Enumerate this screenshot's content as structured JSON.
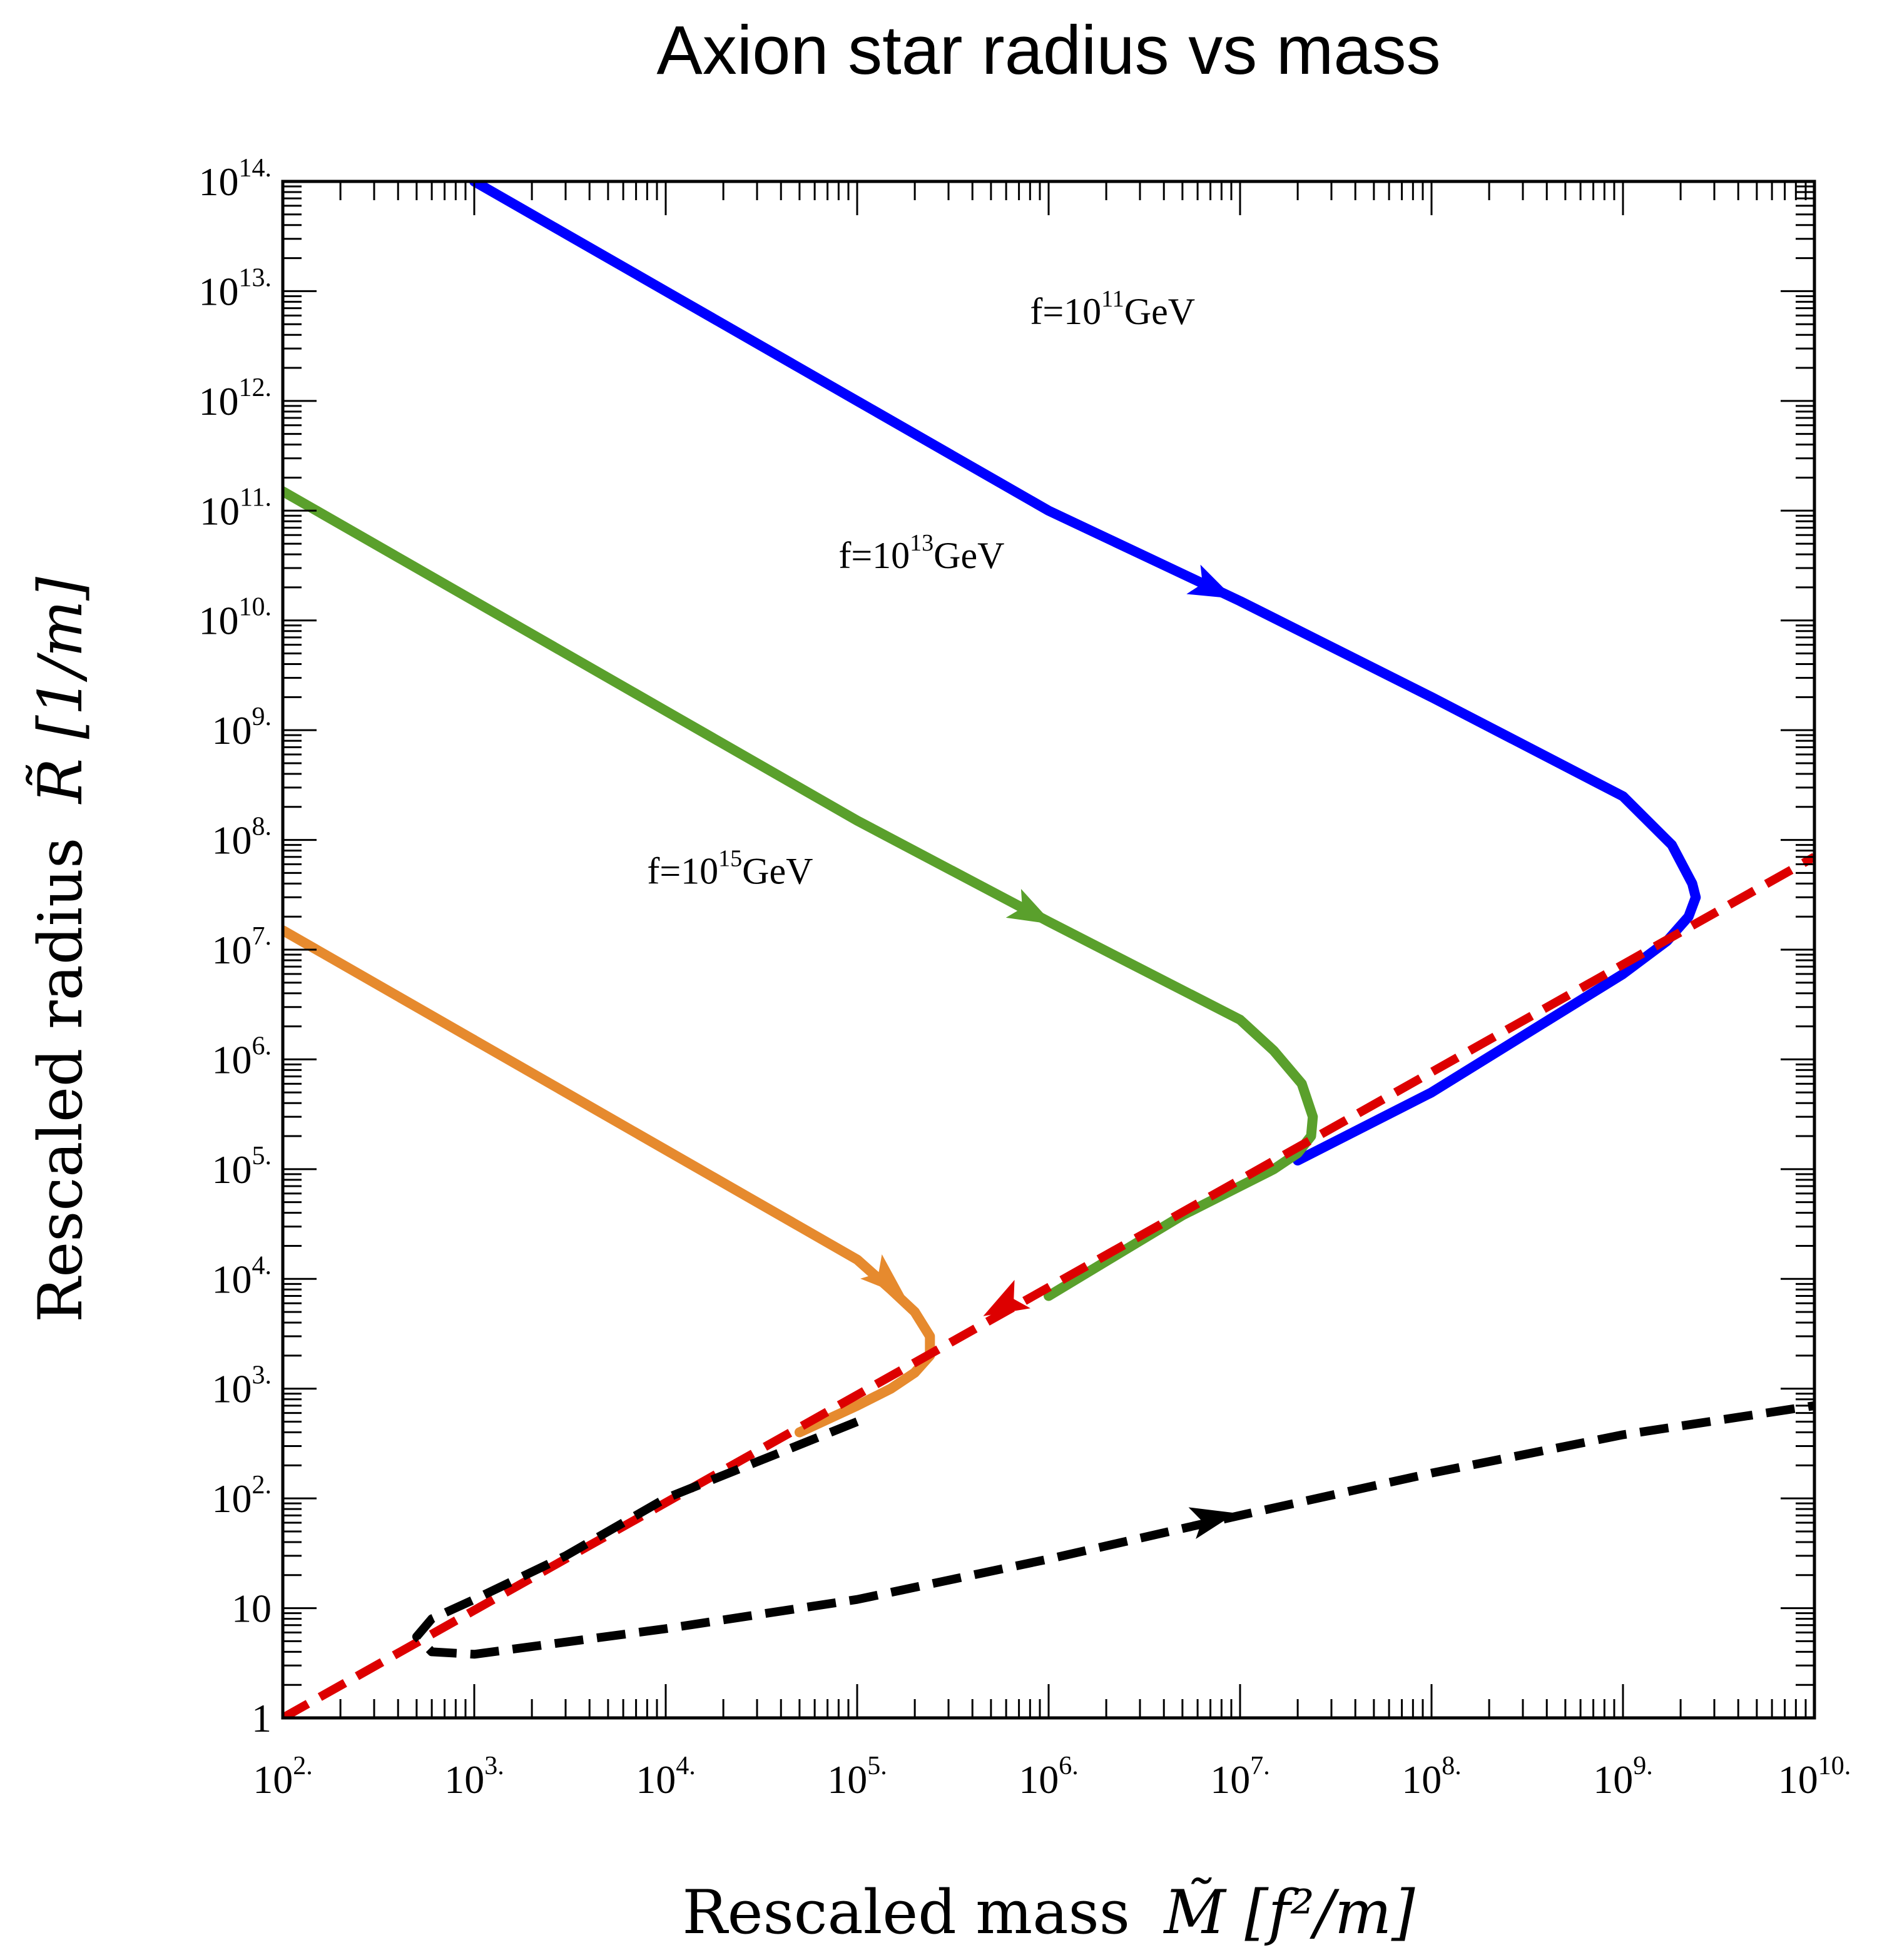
{
  "chart_data": {
    "type": "line",
    "title": "Axion star radius vs mass",
    "xlabel": {
      "prefix": "Rescaled mass",
      "math": "M̃ [f²/m]"
    },
    "ylabel": {
      "prefix": "Rescaled radius",
      "math": "R̃ [1/m]"
    },
    "x_scale": "log",
    "y_scale": "log",
    "xlim": [
      100,
      10000000000
    ],
    "ylim": [
      1,
      100000000000000
    ],
    "x_ticks": [
      {
        "value": 100,
        "base": "10",
        "exp": "2."
      },
      {
        "value": 1000,
        "base": "10",
        "exp": "3."
      },
      {
        "value": 10000,
        "base": "10",
        "exp": "4."
      },
      {
        "value": 100000,
        "base": "10",
        "exp": "5."
      },
      {
        "value": 1000000,
        "base": "10",
        "exp": "6."
      },
      {
        "value": 10000000,
        "base": "10",
        "exp": "7."
      },
      {
        "value": 100000000,
        "base": "10",
        "exp": "8."
      },
      {
        "value": 1000000000,
        "base": "10",
        "exp": "9."
      },
      {
        "value": 10000000000,
        "base": "10",
        "exp": "10."
      }
    ],
    "y_ticks": [
      {
        "value": 1,
        "base": "1",
        "exp": ""
      },
      {
        "value": 10,
        "base": "10",
        "exp": ""
      },
      {
        "value": 100,
        "base": "10",
        "exp": "2."
      },
      {
        "value": 1000,
        "base": "10",
        "exp": "3."
      },
      {
        "value": 10000,
        "base": "10",
        "exp": "4."
      },
      {
        "value": 100000,
        "base": "10",
        "exp": "5."
      },
      {
        "value": 1000000,
        "base": "10",
        "exp": "6."
      },
      {
        "value": 10000000,
        "base": "10",
        "exp": "7."
      },
      {
        "value": 100000000,
        "base": "10",
        "exp": "8."
      },
      {
        "value": 1000000000,
        "base": "10",
        "exp": "9."
      },
      {
        "value": 10000000000,
        "base": "10",
        "exp": "10."
      },
      {
        "value": 100000000000,
        "base": "10",
        "exp": "11."
      },
      {
        "value": 1000000000000,
        "base": "10",
        "exp": "12."
      },
      {
        "value": 10000000000000,
        "base": "10",
        "exp": "13."
      },
      {
        "value": 100000000000000,
        "base": "10",
        "exp": "14."
      }
    ],
    "grid": false,
    "series": [
      {
        "color": "#0000ff",
        "style": "solid",
        "points": [
          [
            1000,
            100000000000000
          ],
          [
            10000,
            10000000000000
          ],
          [
            100000,
            1000000000000
          ],
          [
            1000000,
            100000000000
          ],
          [
            10000000,
            15000000000
          ],
          [
            100000000,
            2000000000
          ],
          [
            1000000000,
            250000000
          ],
          [
            1800000000,
            90000000
          ],
          [
            2300000000,
            40000000
          ],
          [
            2400000000,
            30000000
          ],
          [
            2200000000,
            20000000
          ],
          [
            1700000000,
            12000000
          ],
          [
            1000000000,
            6000000
          ],
          [
            100000000,
            500000
          ],
          [
            20000000,
            120000
          ]
        ],
        "arrow_at": [
          7000000,
          20000000000
        ]
      },
      {
        "color": "#5aa02c",
        "style": "solid",
        "points": [
          [
            100,
            150000000000
          ],
          [
            1000,
            15000000000
          ],
          [
            10000,
            1500000000
          ],
          [
            100000,
            150000000
          ],
          [
            1000000,
            18000000
          ],
          [
            10000000,
            2300000
          ],
          [
            15000000,
            1200000
          ],
          [
            21000000,
            600000
          ],
          [
            24000000,
            300000
          ],
          [
            23500000,
            200000
          ],
          [
            20000000,
            140000
          ],
          [
            15000000,
            100000
          ],
          [
            5000000,
            38000
          ],
          [
            1000000,
            7000
          ]
        ],
        "arrow_at": [
          800000,
          22000000
        ]
      },
      {
        "color": "#e68a2e",
        "style": "solid",
        "points": [
          [
            100,
            15000000
          ],
          [
            1000,
            1500000
          ],
          [
            10000,
            150000
          ],
          [
            100000,
            15000
          ],
          [
            150000,
            8000
          ],
          [
            200000,
            5000
          ],
          [
            240000,
            3000
          ],
          [
            240000,
            2000
          ],
          [
            200000,
            1400
          ],
          [
            150000,
            1000
          ],
          [
            100000,
            700
          ],
          [
            50000,
            400
          ]
        ],
        "arrow_at": [
          140000,
          10000
        ]
      },
      {
        "color": "#dd0000",
        "style": "dashed",
        "points": [
          [
            100,
            1
          ],
          [
            10000000000,
            70000000
          ]
        ],
        "arrow_at": [
          600000,
          6000
        ]
      },
      {
        "color": "#000000",
        "style": "dashed",
        "points": [
          [
            100000,
            500
          ],
          [
            10000,
            100
          ],
          [
            3000,
            30
          ],
          [
            1000,
            12
          ],
          [
            600,
            8
          ],
          [
            500,
            5.5
          ],
          [
            600,
            4
          ],
          [
            1000,
            3.8
          ],
          [
            10000,
            6.5
          ],
          [
            100000,
            12
          ],
          [
            1000000,
            28
          ],
          [
            10000000,
            70
          ],
          [
            100000000,
            170
          ],
          [
            1000000000,
            380
          ],
          [
            10000000000,
            700
          ]
        ],
        "arrow_at": [
          7000000,
          65
        ]
      }
    ],
    "annotations": [
      {
        "text": "f=10",
        "sup": "11",
        "unit": "GeV",
        "at": [
          800000,
          5000000000000
        ]
      },
      {
        "text": "f=10",
        "sup": "13",
        "unit": "GeV",
        "at": [
          80000,
          30000000000
        ]
      },
      {
        "text": "f=10",
        "sup": "15",
        "unit": "GeV",
        "at": [
          8000,
          40000000
        ]
      }
    ]
  }
}
